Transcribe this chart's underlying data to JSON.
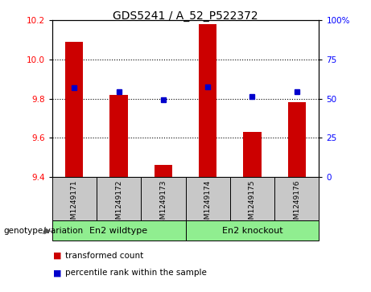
{
  "title": "GDS5241 / A_52_P522372",
  "samples": [
    "GSM1249171",
    "GSM1249172",
    "GSM1249173",
    "GSM1249174",
    "GSM1249175",
    "GSM1249176"
  ],
  "groups": [
    {
      "name": "En2 wildtype",
      "indices": [
        0,
        1,
        2
      ],
      "color": "#90EE90"
    },
    {
      "name": "En2 knockout",
      "indices": [
        3,
        4,
        5
      ],
      "color": "#90EE90"
    }
  ],
  "red_values": [
    10.09,
    9.82,
    9.46,
    10.18,
    9.63,
    9.78
  ],
  "blue_values": [
    9.855,
    9.835,
    9.795,
    9.858,
    9.81,
    9.835
  ],
  "ylim_left": [
    9.4,
    10.2
  ],
  "ylim_right": [
    0,
    100
  ],
  "yticks_left": [
    9.4,
    9.6,
    9.8,
    10.0,
    10.2
  ],
  "yticks_right": [
    0,
    25,
    50,
    75,
    100
  ],
  "ytick_labels_right": [
    "0",
    "25",
    "50",
    "75",
    "100%"
  ],
  "bar_color": "#CC0000",
  "dot_color": "#0000CC",
  "bar_width": 0.4,
  "baseline": 9.4,
  "label_red": "transformed count",
  "label_blue": "percentile rank within the sample",
  "genotype_label": "genotype/variation",
  "bg_color": "#c8c8c8",
  "group_bg": "#77dd77"
}
